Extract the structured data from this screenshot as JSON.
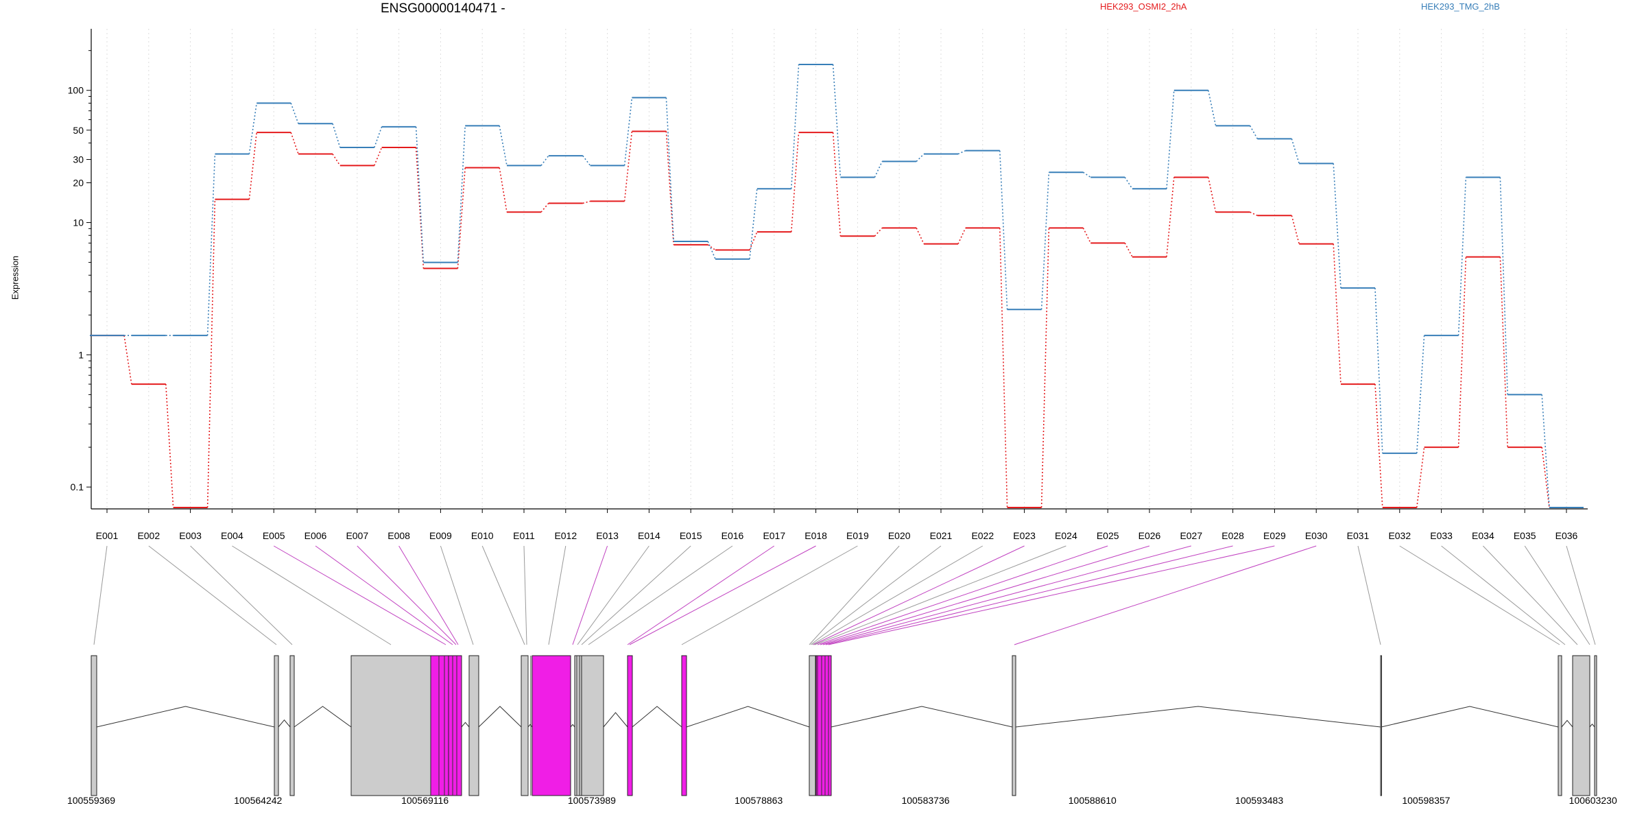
{
  "chart_data": {
    "type": "line",
    "title": "ENSG00000140471 -",
    "xlabel": "",
    "ylabel": "Expression",
    "yscale": "log",
    "ylim": [
      0.07,
      250
    ],
    "yticks": [
      0.1,
      1,
      10,
      20,
      30,
      50,
      100
    ],
    "grid": "vertical dotted at each exon",
    "legend_placement": "top",
    "categories": [
      "E001",
      "E002",
      "E003",
      "E004",
      "E005",
      "E006",
      "E007",
      "E008",
      "E009",
      "E010",
      "E011",
      "E012",
      "E013",
      "E014",
      "E015",
      "E016",
      "E017",
      "E018",
      "E019",
      "E020",
      "E021",
      "E022",
      "E023",
      "E024",
      "E025",
      "E026",
      "E027",
      "E028",
      "E029",
      "E030",
      "E031",
      "E032",
      "E033",
      "E034",
      "E035",
      "E036"
    ],
    "series": [
      {
        "name": "HEK293_OSMI2_2hA",
        "color": "#e41a1c",
        "values": [
          1.4,
          0.6,
          0.07,
          15,
          48,
          33,
          27,
          37,
          4.5,
          26,
          12,
          14,
          14.5,
          49,
          6.8,
          6.2,
          8.5,
          48,
          7.9,
          9.1,
          6.9,
          9.1,
          0.07,
          9.1,
          7,
          5.5,
          22,
          12,
          11.3,
          6.9,
          0.6,
          0.07,
          0.2,
          5.5,
          0.2,
          0.07
        ]
      },
      {
        "name": "HEK293_TMG_2hB",
        "color": "#377eb8",
        "values": [
          1.4,
          1.4,
          1.4,
          33,
          80,
          56,
          37,
          53,
          5,
          54,
          27,
          32,
          27,
          88,
          7.2,
          5.3,
          18,
          157,
          22,
          29,
          33,
          35,
          2.2,
          24,
          22,
          18,
          100,
          54,
          43,
          28,
          3.2,
          0.18,
          1.4,
          22,
          0.5,
          0.07
        ]
      }
    ],
    "gene_model": {
      "coordinate_ticks": [
        "100559369",
        "100564242",
        "100569116",
        "100573989",
        "100578863",
        "100583736",
        "100588610",
        "100593483",
        "100598357",
        "100603230"
      ],
      "range": [
        100559369,
        100603230
      ]
    }
  }
}
